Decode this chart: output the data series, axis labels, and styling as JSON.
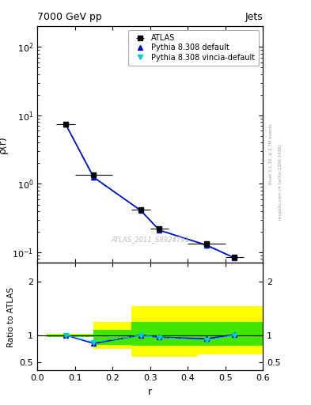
{
  "title": "7000 GeV pp",
  "title_right": "Jets",
  "watermark": "ATLAS_2011_S8924791",
  "right_label": "mcplots.cern.ch [arXiv:1306.3436]",
  "right_label2": "Rivet 3.1.10, ≥ 2.7M events",
  "ylabel_main": "ρ(r)",
  "ylabel_ratio": "Ratio to ATLAS",
  "xlabel": "r",
  "legend": [
    "ATLAS",
    "Pythia 8.308 default",
    "Pythia 8.308 vincia-default"
  ],
  "data_x": [
    0.075,
    0.15,
    0.275,
    0.325,
    0.45,
    0.525
  ],
  "data_y": [
    7.5,
    1.35,
    0.42,
    0.22,
    0.135,
    0.085
  ],
  "data_xerr": [
    0.025,
    0.05,
    0.025,
    0.025,
    0.05,
    0.025
  ],
  "py_default_x": [
    0.075,
    0.15,
    0.275,
    0.325,
    0.45,
    0.525
  ],
  "py_default_y": [
    7.5,
    1.25,
    0.41,
    0.21,
    0.128,
    0.083
  ],
  "py_vincia_x": [
    0.075,
    0.15,
    0.275,
    0.325,
    0.45,
    0.525
  ],
  "py_vincia_y": [
    7.5,
    1.22,
    0.41,
    0.215,
    0.125,
    0.083
  ],
  "ratio_default_y": [
    1.01,
    0.855,
    1.01,
    0.97,
    0.94,
    1.02
  ],
  "ratio_vincia_y": [
    1.01,
    0.875,
    1.005,
    0.965,
    0.915,
    1.01
  ],
  "yellow_band_edges": [
    0.025,
    0.075,
    0.15,
    0.25,
    0.35,
    0.425,
    0.6
  ],
  "yellow_band_lo": [
    0.97,
    0.97,
    0.75,
    0.6,
    0.6,
    0.65,
    0.65
  ],
  "yellow_band_hi": [
    1.03,
    1.03,
    1.25,
    1.55,
    1.55,
    1.55,
    1.55
  ],
  "green_band_edges": [
    0.025,
    0.075,
    0.15,
    0.25,
    0.35,
    0.425,
    0.6
  ],
  "green_band_lo": [
    0.98,
    0.98,
    0.83,
    0.82,
    0.82,
    0.82,
    0.8
  ],
  "green_band_hi": [
    1.02,
    1.02,
    1.1,
    1.25,
    1.25,
    1.25,
    1.28
  ],
  "xlim": [
    0.0,
    0.6
  ],
  "ylim_main_log": [
    0.07,
    200
  ],
  "ylim_ratio": [
    0.35,
    2.35
  ],
  "ratio_yticks": [
    0.5,
    1.0,
    2.0
  ],
  "color_data": "#000000",
  "color_default": "#0000cc",
  "color_vincia": "#00cccc",
  "color_yellow": "#ffff00",
  "color_green": "#00dd00",
  "color_watermark": "#bbbbbb",
  "color_right_label": "#999999"
}
